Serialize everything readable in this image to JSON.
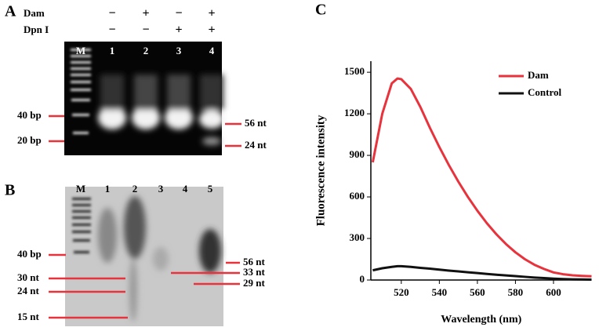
{
  "panels": {
    "a": "A",
    "b": "B",
    "c": "C"
  },
  "gel_a": {
    "row_labels": [
      "Dam",
      "Dpn I"
    ],
    "rows": [
      [
        "−",
        "+",
        "−",
        "+"
      ],
      [
        "−",
        "−",
        "+",
        "+"
      ]
    ],
    "lanes": [
      "M",
      "1",
      "2",
      "3",
      "4"
    ],
    "left_markers": [
      "40 bp",
      "20 bp"
    ],
    "right_markers": [
      "56 nt",
      "24 nt"
    ]
  },
  "gel_b": {
    "lanes": [
      "M",
      "1",
      "2",
      "3",
      "4",
      "5"
    ],
    "left_markers": [
      "40 bp",
      "30 nt",
      "24 nt",
      "15 nt"
    ],
    "right_markers": [
      "56 nt",
      "33 nt",
      "29 nt"
    ]
  },
  "chart_data": {
    "type": "line",
    "x_label": "Wavelength (nm)",
    "y_label": "Fluorescence intensity",
    "x": [
      505,
      510,
      515,
      518,
      520,
      525,
      530,
      535,
      540,
      545,
      550,
      555,
      560,
      565,
      570,
      575,
      580,
      585,
      590,
      595,
      600,
      605,
      610,
      615,
      620
    ],
    "series": [
      {
        "name": "Dam",
        "color": "#e8323c",
        "values": [
          850,
          1200,
          1420,
          1455,
          1450,
          1380,
          1250,
          1100,
          960,
          830,
          710,
          600,
          500,
          410,
          330,
          260,
          200,
          150,
          110,
          80,
          55,
          42,
          34,
          30,
          27
        ]
      },
      {
        "name": "Control",
        "color": "#111111",
        "values": [
          70,
          85,
          95,
          100,
          100,
          95,
          88,
          82,
          75,
          68,
          62,
          56,
          50,
          44,
          38,
          33,
          28,
          23,
          18,
          14,
          10,
          7,
          5,
          4,
          3
        ]
      }
    ],
    "xlim": [
      504,
      620
    ],
    "xticks": [
      520,
      540,
      560,
      580,
      600
    ],
    "ylim": [
      0,
      1580
    ],
    "yticks": [
      0,
      300,
      600,
      900,
      1200,
      1500
    ],
    "legend": "upper right"
  }
}
